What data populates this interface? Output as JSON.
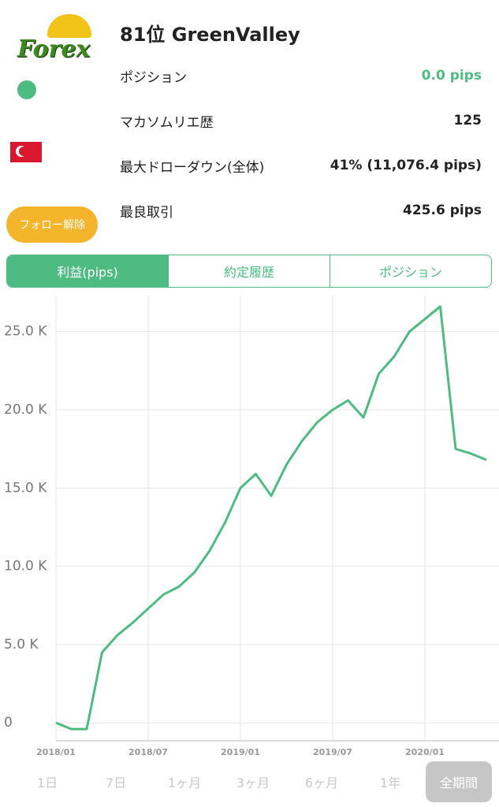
{
  "profile": {
    "logo_text": "Forex",
    "title": "81位 GreenValley",
    "stats": [
      {
        "label": "ポジション",
        "value": "0.0 pips"
      },
      {
        "label": "マカソムリエ歴",
        "value": "125"
      },
      {
        "label": "最大ドローダウン(全体)",
        "value": "41% (11,076.4 pips)"
      },
      {
        "label": "最良取引",
        "value": "425.6 pips"
      }
    ],
    "unfollow_button": "フォロー解除"
  },
  "tabs": [
    "利益(pips)",
    "約定履歴",
    "ポジション"
  ],
  "chart_data": {
    "type": "line",
    "color": "#4dbb82",
    "grid": true,
    "x": [
      "2018/01",
      "2018/02",
      "2018/03",
      "2018/04",
      "2018/05",
      "2018/06",
      "2018/07",
      "2018/08",
      "2018/09",
      "2018/10",
      "2018/11",
      "2018/12",
      "2019/01",
      "2019/02",
      "2019/03",
      "2019/04",
      "2019/05",
      "2019/06",
      "2019/07",
      "2019/08",
      "2019/09",
      "2019/10",
      "2019/11",
      "2019/12",
      "2020/01",
      "2020/02",
      "2020/03",
      "2020/04",
      "2020/05"
    ],
    "values": [
      0,
      -400,
      -400,
      4500,
      5600,
      6400,
      7300,
      8200,
      8700,
      9600,
      11000,
      12800,
      15000,
      15900,
      14500,
      16500,
      18000,
      19200,
      20000,
      20600,
      19500,
      22300,
      23400,
      25000,
      25800,
      26600,
      17500,
      17200,
      16800
    ],
    "xticks": [
      "2018/01",
      "2018/07",
      "2019/01",
      "2019/07",
      "2020/01"
    ],
    "ylim": [
      -1150,
      27300
    ],
    "yticks": [
      0,
      {
        "value": 5000,
        "label": "5.0 K"
      },
      {
        "value": 10000,
        "label": "10.0 K"
      },
      {
        "value": 15000,
        "label": "15.0 K"
      },
      {
        "value": 20000,
        "label": "20.0 K"
      },
      {
        "value": 25000,
        "label": "25.0 K"
      }
    ]
  },
  "range_buttons": [
    "1日",
    "7日",
    "1ヶ月",
    "3ヶ月",
    "6ヶ月",
    "1年",
    "全期間"
  ]
}
